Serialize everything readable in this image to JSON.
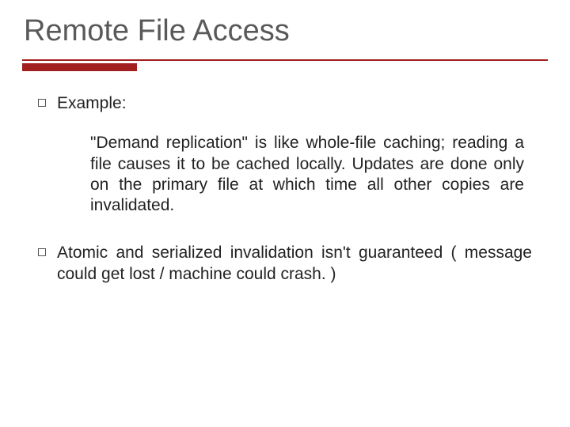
{
  "slide": {
    "title": "Remote File Access",
    "title_color": "#595959",
    "title_fontsize": 38,
    "underline": {
      "thin_color": "#a11f1f",
      "thin_height": 2,
      "thick_color": "#a11f1f",
      "thick_height": 10,
      "thick_width": 145
    },
    "background_color": "#ffffff",
    "bullets": [
      {
        "text": "Example:",
        "justify": false
      }
    ],
    "indented_paragraph": "\"Demand replication\" is like whole-file caching; reading a file causes it to be cached locally. Updates are done only on the primary file at which time all other copies are invalidated.",
    "bullets2": [
      {
        "text": "Atomic and serialized invalidation isn't guaranteed ( message could get lost / machine could crash. )",
        "justify": true
      }
    ],
    "body_fontsize": 21,
    "body_color": "#222222",
    "bullet_marker": {
      "size": 10,
      "border_color": "#555555",
      "border_width": 1.5
    }
  }
}
